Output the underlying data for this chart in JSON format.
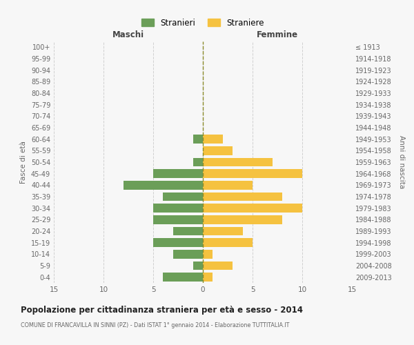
{
  "age_groups": [
    "0-4",
    "5-9",
    "10-14",
    "15-19",
    "20-24",
    "25-29",
    "30-34",
    "35-39",
    "40-44",
    "45-49",
    "50-54",
    "55-59",
    "60-64",
    "65-69",
    "70-74",
    "75-79",
    "80-84",
    "85-89",
    "90-94",
    "95-99",
    "100+"
  ],
  "birth_years": [
    "2009-2013",
    "2004-2008",
    "1999-2003",
    "1994-1998",
    "1989-1993",
    "1984-1988",
    "1979-1983",
    "1974-1978",
    "1969-1973",
    "1964-1968",
    "1959-1963",
    "1954-1958",
    "1949-1953",
    "1944-1948",
    "1939-1943",
    "1934-1938",
    "1929-1933",
    "1924-1928",
    "1919-1923",
    "1914-1918",
    "≤ 1913"
  ],
  "males": [
    4,
    1,
    3,
    5,
    3,
    5,
    5,
    4,
    8,
    5,
    1,
    0,
    1,
    0,
    0,
    0,
    0,
    0,
    0,
    0,
    0
  ],
  "females": [
    1,
    3,
    1,
    5,
    4,
    8,
    10,
    8,
    5,
    10,
    7,
    3,
    2,
    0,
    0,
    0,
    0,
    0,
    0,
    0,
    0
  ],
  "male_color": "#6b9e58",
  "female_color": "#f5c240",
  "background_color": "#f7f7f7",
  "grid_color": "#d0d0d0",
  "center_line_color": "#8b8b2a",
  "title": "Popolazione per cittadinanza straniera per età e sesso - 2014",
  "subtitle": "COMUNE DI FRANCAVILLA IN SINNI (PZ) - Dati ISTAT 1° gennaio 2014 - Elaborazione TUTTITALIA.IT",
  "xlabel_left": "Maschi",
  "xlabel_right": "Femmine",
  "ylabel_left": "Fasce di età",
  "ylabel_right": "Anni di nascita",
  "xlim": 15,
  "legend_male": "Stranieri",
  "legend_female": "Straniere"
}
